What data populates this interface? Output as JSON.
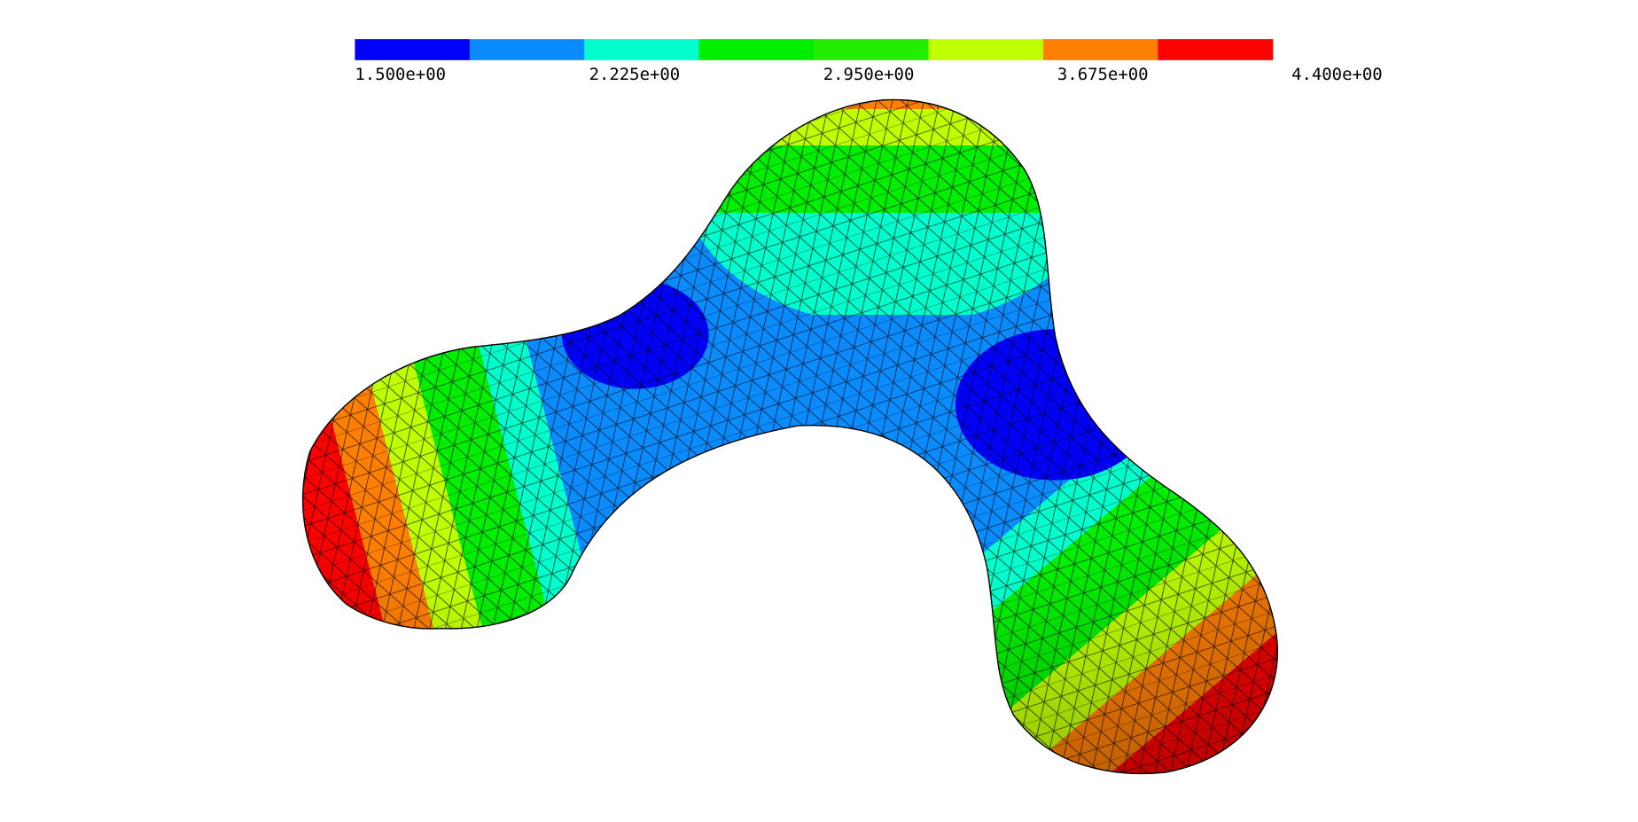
{
  "colorbar": {
    "labels": [
      "1.500e+00",
      "2.225e+00",
      "2.950e+00",
      "3.675e+00",
      "4.400e+00"
    ],
    "colors": [
      "#0000ff",
      "#0a8cff",
      "#00ffcc",
      "#00ee00",
      "#22ee00",
      "#c0ff00",
      "#ff7f00",
      "#ff0000"
    ]
  }
}
